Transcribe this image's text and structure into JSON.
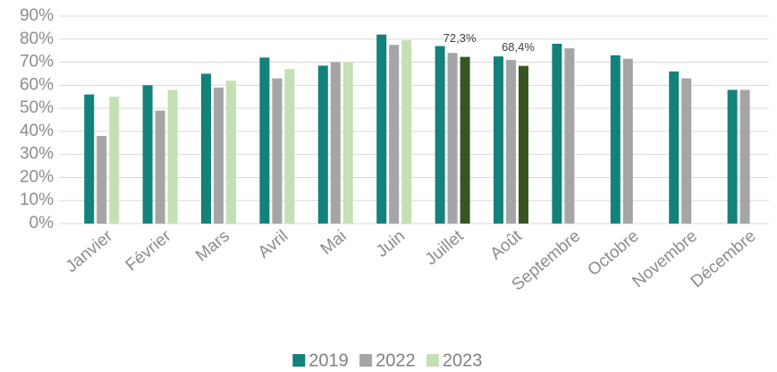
{
  "chart_data": {
    "type": "bar",
    "categories": [
      "Janvier",
      "Février",
      "Mars",
      "Avril",
      "Mai",
      "Juin",
      "Juillet",
      "Août",
      "Septembre",
      "Octobre",
      "Novembre",
      "Décembre"
    ],
    "series": [
      {
        "name": "2019",
        "color": "#12827a",
        "values": [
          56,
          60,
          65,
          72,
          68.5,
          82,
          77,
          72.5,
          78,
          73,
          66,
          58
        ]
      },
      {
        "name": "2022",
        "color": "#a5a5a5",
        "values": [
          38,
          49,
          59,
          63,
          70,
          77.5,
          74,
          71,
          76,
          71.5,
          63,
          58
        ]
      },
      {
        "name": "2023",
        "color": "#c5e0b4",
        "values": [
          55,
          58,
          62,
          67,
          70,
          79.5,
          72.3,
          68.4,
          null,
          null,
          null,
          null
        ],
        "point_colors": [
          "#c5e0b4",
          "#c5e0b4",
          "#c5e0b4",
          "#c5e0b4",
          "#c5e0b4",
          "#c5e0b4",
          "#375623",
          "#375623",
          null,
          null,
          null,
          null
        ],
        "value_labels": [
          null,
          null,
          null,
          null,
          null,
          null,
          "72,3%",
          "68,4%",
          null,
          null,
          null,
          null
        ]
      }
    ],
    "ylim": [
      0,
      90
    ],
    "yticks": [
      {
        "value": 0,
        "label": "0%"
      },
      {
        "value": 10,
        "label": "10%"
      },
      {
        "value": 20,
        "label": "20%"
      },
      {
        "value": 30,
        "label": "30%"
      },
      {
        "value": 40,
        "label": "40%"
      },
      {
        "value": 50,
        "label": "50%"
      },
      {
        "value": 60,
        "label": "60%"
      },
      {
        "value": 70,
        "label": "70%"
      },
      {
        "value": 80,
        "label": "80%"
      },
      {
        "value": 90,
        "label": "90%"
      }
    ],
    "grid": true,
    "legend": "bottom"
  }
}
